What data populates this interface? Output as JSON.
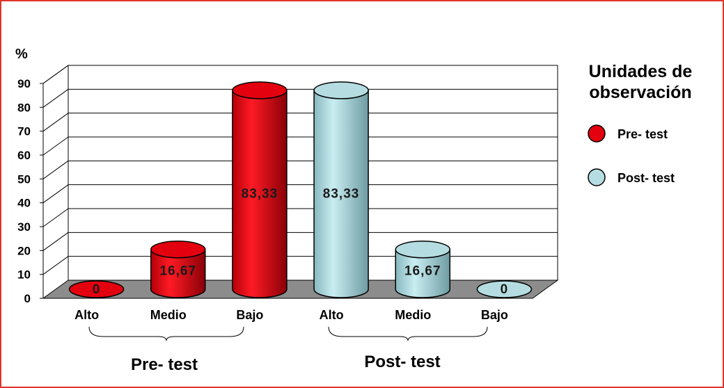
{
  "chart_data": {
    "type": "bar",
    "style": "3d-cylinder",
    "ylabel": "%",
    "ylim": [
      0,
      90
    ],
    "yticks": [
      0,
      10,
      20,
      30,
      40,
      50,
      60,
      70,
      80,
      90
    ],
    "grid": true,
    "categories": [
      "Alto",
      "Medio",
      "Bajo",
      "Alto",
      "Medio",
      "Bajo"
    ],
    "values": [
      0,
      16.67,
      83.33,
      83.33,
      16.67,
      0
    ],
    "data_labels": [
      "0",
      "16,67",
      "83,33",
      "83,33",
      "16,67",
      "0"
    ],
    "series_index": [
      0,
      0,
      0,
      1,
      1,
      1
    ],
    "groups": [
      {
        "label": "Pre- test"
      },
      {
        "label": "Post- test"
      }
    ],
    "legend": {
      "title": "Unidades de observación",
      "title_lines": [
        "Unidades de",
        "observación"
      ],
      "placement": "right"
    },
    "series": [
      {
        "name": "Pre- test",
        "color": "#e3000f"
      },
      {
        "name": "Post- test",
        "color": "#b5dde1"
      }
    ]
  }
}
